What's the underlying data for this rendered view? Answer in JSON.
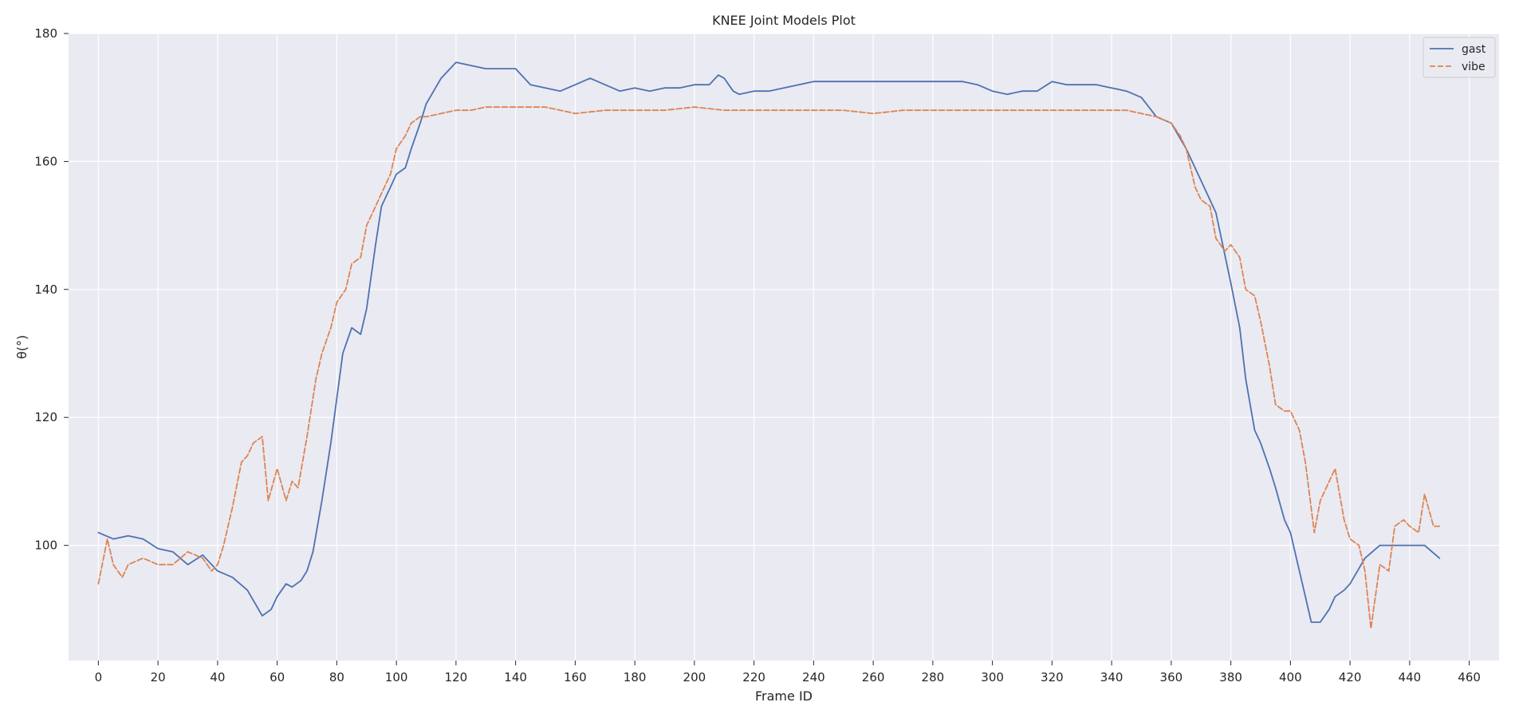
{
  "chart_data": {
    "type": "line",
    "title": "KNEE Joint Models Plot",
    "xlabel": "Frame ID",
    "ylabel": "θ(°)",
    "xlim": [
      -10,
      470
    ],
    "ylim": [
      82,
      180
    ],
    "xticks": [
      0,
      20,
      40,
      60,
      80,
      100,
      120,
      140,
      160,
      180,
      200,
      220,
      240,
      260,
      280,
      300,
      320,
      340,
      360,
      380,
      400,
      420,
      440,
      460
    ],
    "yticks": [
      100,
      120,
      140,
      160,
      180
    ],
    "grid": true,
    "legend_position": "top-right",
    "series": [
      {
        "name": "gast",
        "color": "#4c72b0",
        "style": "solid",
        "x": [
          0,
          5,
          10,
          15,
          20,
          25,
          30,
          35,
          40,
          45,
          50,
          55,
          58,
          60,
          63,
          65,
          68,
          70,
          72,
          75,
          78,
          80,
          82,
          85,
          88,
          90,
          93,
          95,
          98,
          100,
          103,
          105,
          108,
          110,
          115,
          120,
          125,
          130,
          135,
          140,
          145,
          150,
          155,
          160,
          165,
          170,
          175,
          180,
          185,
          190,
          195,
          200,
          205,
          208,
          210,
          213,
          215,
          220,
          225,
          230,
          235,
          240,
          245,
          250,
          255,
          260,
          265,
          270,
          275,
          280,
          285,
          290,
          295,
          300,
          305,
          310,
          315,
          320,
          325,
          330,
          335,
          340,
          345,
          350,
          355,
          360,
          365,
          370,
          375,
          380,
          383,
          385,
          388,
          390,
          393,
          395,
          398,
          400,
          403,
          405,
          407,
          410,
          413,
          415,
          418,
          420,
          425,
          430,
          435,
          440,
          445,
          450
        ],
        "y": [
          102,
          101,
          101.5,
          101,
          99.5,
          99,
          97,
          98.5,
          96,
          95,
          93,
          89,
          90,
          92,
          94,
          93.5,
          94.5,
          96,
          99,
          107,
          116,
          123,
          130,
          134,
          133,
          137,
          147,
          153,
          156,
          158,
          159,
          162,
          166,
          169,
          173,
          175.5,
          175,
          174.5,
          174.5,
          174.5,
          172,
          171.5,
          171,
          172,
          173,
          172,
          171,
          171.5,
          171,
          171.5,
          171.5,
          172,
          172,
          173.5,
          173,
          171,
          170.5,
          171,
          171,
          171.5,
          172,
          172.5,
          172.5,
          172.5,
          172.5,
          172.5,
          172.5,
          172.5,
          172.5,
          172.5,
          172.5,
          172.5,
          172,
          171,
          170.5,
          171,
          171,
          172.5,
          172,
          172,
          172,
          171.5,
          171,
          170,
          167,
          166,
          162,
          157,
          152,
          141,
          134,
          126,
          118,
          116,
          112,
          109,
          104,
          102,
          96,
          92,
          88,
          88,
          90,
          92,
          93,
          94,
          98,
          100,
          100,
          100,
          100,
          98
        ]
      },
      {
        "name": "vibe",
        "color": "#dd8452",
        "style": "dashed",
        "x": [
          0,
          3,
          5,
          8,
          10,
          15,
          20,
          25,
          30,
          35,
          38,
          40,
          42,
          45,
          48,
          50,
          52,
          55,
          57,
          60,
          63,
          65,
          67,
          70,
          73,
          75,
          78,
          80,
          83,
          85,
          88,
          90,
          93,
          95,
          98,
          100,
          103,
          105,
          108,
          110,
          115,
          120,
          125,
          130,
          135,
          140,
          145,
          150,
          155,
          160,
          170,
          180,
          190,
          200,
          210,
          220,
          230,
          240,
          250,
          260,
          270,
          280,
          290,
          300,
          310,
          320,
          330,
          340,
          345,
          350,
          355,
          360,
          363,
          365,
          368,
          370,
          373,
          375,
          378,
          380,
          383,
          385,
          388,
          390,
          393,
          395,
          398,
          400,
          403,
          405,
          408,
          410,
          413,
          415,
          418,
          420,
          423,
          425,
          427,
          430,
          433,
          435,
          438,
          440,
          443,
          445,
          448,
          450
        ],
        "y": [
          94,
          101,
          97,
          95,
          97,
          98,
          97,
          97,
          99,
          98,
          96,
          97,
          100,
          106,
          113,
          114,
          116,
          117,
          107,
          112,
          107,
          110,
          109,
          117,
          126,
          130,
          134,
          138,
          140,
          144,
          145,
          150,
          153,
          155,
          158,
          162,
          164,
          166,
          167,
          167,
          167.5,
          168,
          168,
          168.5,
          168.5,
          168.5,
          168.5,
          168.5,
          168,
          167.5,
          168,
          168,
          168,
          168.5,
          168,
          168,
          168,
          168,
          168,
          167.5,
          168,
          168,
          168,
          168,
          168,
          168,
          168,
          168,
          168,
          167.5,
          167,
          166,
          164,
          162,
          156,
          154,
          153,
          148,
          146,
          147,
          145,
          140,
          139,
          135,
          128,
          122,
          121,
          121,
          118,
          113,
          102,
          107,
          110,
          112,
          104,
          101,
          100,
          96,
          87,
          97,
          96,
          103,
          104,
          103,
          102,
          108,
          103,
          103
        ]
      }
    ]
  }
}
